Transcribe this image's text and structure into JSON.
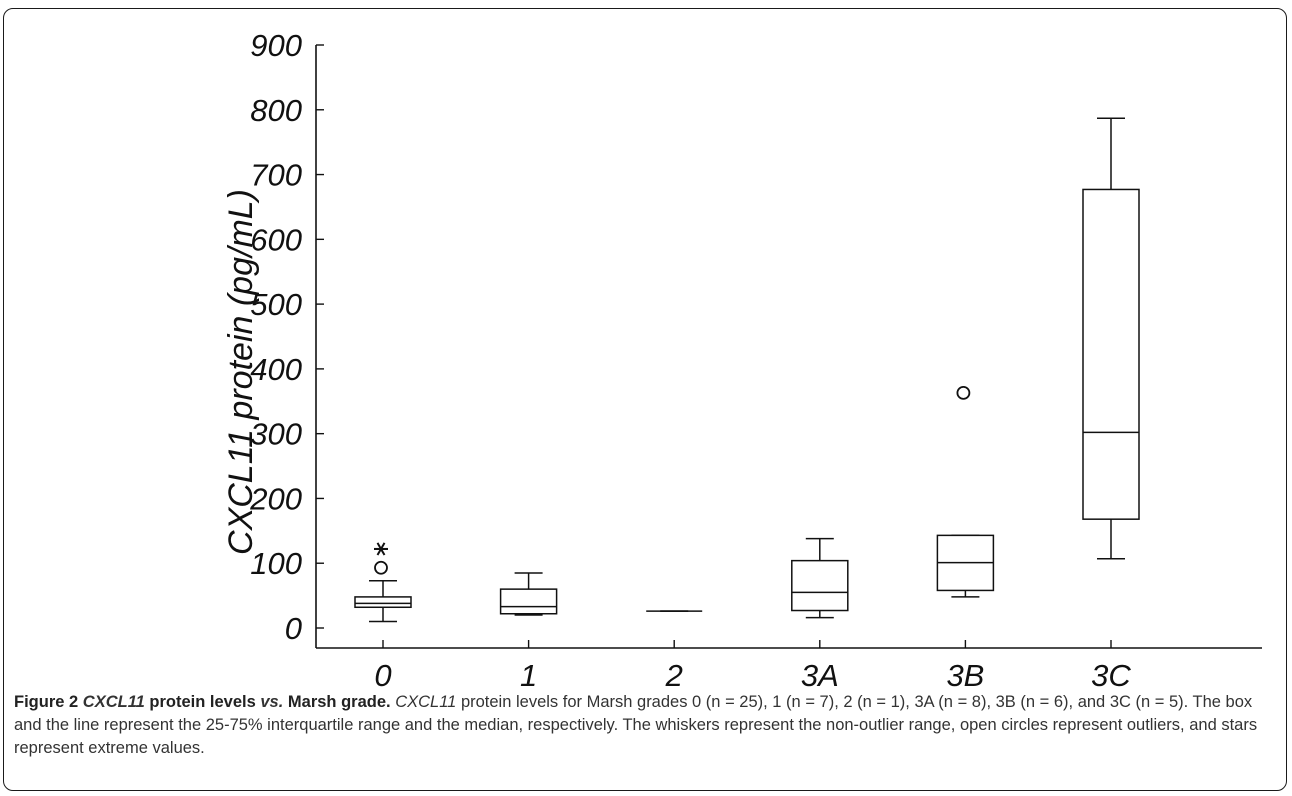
{
  "chart_data": {
    "type": "box",
    "ylabel": "CXCL11 protein (pg/mL)",
    "xlabel": "",
    "ylim": [
      0,
      900
    ],
    "yticks": [
      0,
      100,
      200,
      300,
      400,
      500,
      600,
      700,
      800,
      900
    ],
    "categories": [
      "0",
      "1",
      "2",
      "3A",
      "3B",
      "3C"
    ],
    "boxes": [
      {
        "category": "0",
        "whisker_low": 10,
        "q1": 32,
        "median": 38,
        "q3": 48,
        "whisker_high": 73,
        "outliers": [
          93
        ],
        "extremes": [
          122
        ]
      },
      {
        "category": "1",
        "whisker_low": 20,
        "q1": 22,
        "median": 33,
        "q3": 60,
        "whisker_high": 85,
        "outliers": [],
        "extremes": []
      },
      {
        "category": "2",
        "whisker_low": 26,
        "q1": 26,
        "median": 26,
        "q3": 26,
        "whisker_high": 26,
        "outliers": [],
        "extremes": []
      },
      {
        "category": "3A",
        "whisker_low": 16,
        "q1": 27,
        "median": 55,
        "q3": 104,
        "whisker_high": 138,
        "outliers": [],
        "extremes": []
      },
      {
        "category": "3B",
        "whisker_low": 48,
        "q1": 58,
        "median": 101,
        "q3": 143,
        "whisker_high": 143,
        "outliers": [
          363
        ],
        "extremes": []
      },
      {
        "category": "3C",
        "whisker_low": 107,
        "q1": 168,
        "median": 302,
        "q3": 677,
        "whisker_high": 787,
        "outliers": [],
        "extremes": []
      }
    ],
    "grid": false
  },
  "caption": {
    "label": "Figure 2",
    "title_gene": "CXCL11",
    "title_mid": " protein levels ",
    "title_vs": "vs.",
    "title_end": " Marsh grade.",
    "body_gene": "CXCL11",
    "body_text": " protein levels for Marsh grades 0 (n = 25), 1 (n = 7), 2 (n = 1), 3A (n = 8), 3B (n = 6), and 3C (n = 5). The box and the line represent the 25-75% interquartile range and the median, respectively. The whiskers represent the non-outlier range, open circles represent outliers, and stars represent extreme values."
  },
  "colors": {
    "ink": "#111111",
    "caption_text": "#333333"
  }
}
